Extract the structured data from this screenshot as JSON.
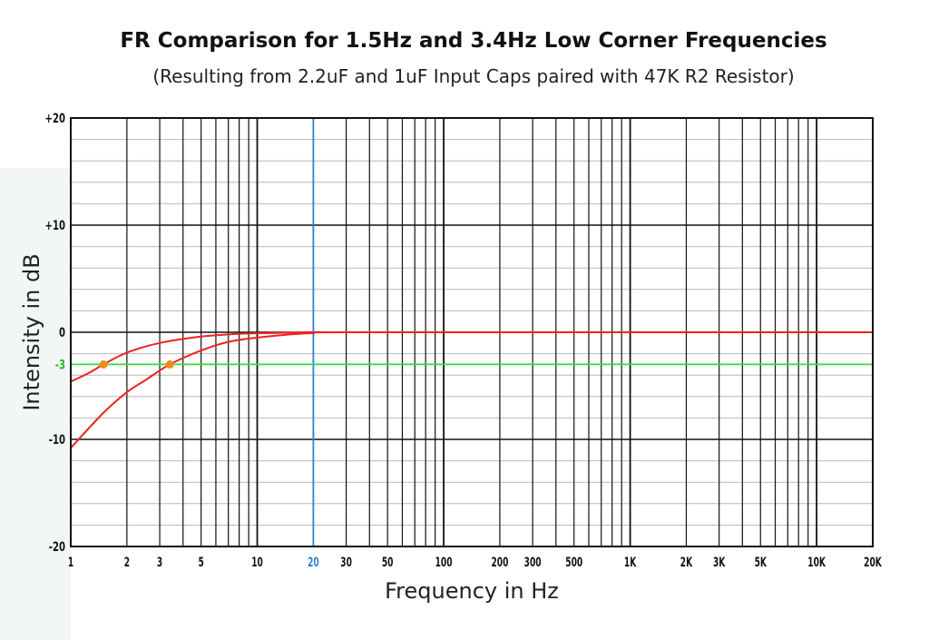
{
  "chart_data": {
    "type": "line",
    "title": "FR Comparison for 1.5Hz and 3.4Hz Low Corner Frequencies",
    "subtitle": "(Resulting from 2.2uF and 1uF Input Caps paired with 47K R2 Resistor)",
    "xlabel": "Frequency in Hz",
    "ylabel": "Intensity in dB",
    "x_scale": "log",
    "xlim": [
      1,
      20000
    ],
    "ylim": [
      -20,
      20
    ],
    "grid": true,
    "x_ticks": [
      {
        "value": 1,
        "label": "1"
      },
      {
        "value": 2,
        "label": "2"
      },
      {
        "value": 3,
        "label": "3"
      },
      {
        "value": 5,
        "label": "5"
      },
      {
        "value": 10,
        "label": "10"
      },
      {
        "value": 20,
        "label": "20"
      },
      {
        "value": 30,
        "label": "30"
      },
      {
        "value": 50,
        "label": "50"
      },
      {
        "value": 100,
        "label": "100"
      },
      {
        "value": 200,
        "label": "200"
      },
      {
        "value": 300,
        "label": "300"
      },
      {
        "value": 500,
        "label": "500"
      },
      {
        "value": 1000,
        "label": "1K"
      },
      {
        "value": 2000,
        "label": "2K"
      },
      {
        "value": 3000,
        "label": "3K"
      },
      {
        "value": 5000,
        "label": "5K"
      },
      {
        "value": 10000,
        "label": "10K"
      },
      {
        "value": 20000,
        "label": "20K"
      }
    ],
    "y_ticks": [
      {
        "value": 20,
        "label": "+20"
      },
      {
        "value": 10,
        "label": "+10"
      },
      {
        "value": 0,
        "label": "0"
      },
      {
        "value": -3,
        "label": "-3"
      },
      {
        "value": -10,
        "label": "-10"
      },
      {
        "value": -20,
        "label": "-20"
      }
    ],
    "highlight_x": {
      "value": 20,
      "color": "#2b7fd0"
    },
    "reference_line": {
      "value": -3,
      "color": "#33dd33"
    },
    "series": [
      {
        "corner_hz": 1.5,
        "color": "#ee2222",
        "x": [
          1,
          1.25,
          1.5,
          2,
          3,
          5,
          8,
          12,
          20,
          30,
          20000
        ],
        "y": [
          -4.6,
          -3.8,
          -3.0,
          -1.9,
          -1.0,
          -0.4,
          -0.15,
          -0.07,
          0,
          0,
          0
        ]
      },
      {
        "corner_hz": 3.4,
        "color": "#ee2222",
        "x": [
          1,
          1.5,
          2,
          2.5,
          3.4,
          5,
          7,
          10,
          15,
          20,
          30,
          20000
        ],
        "y": [
          -10.8,
          -7.5,
          -5.6,
          -4.5,
          -3.0,
          -1.7,
          -0.9,
          -0.5,
          -0.2,
          -0.08,
          0,
          0
        ]
      }
    ],
    "markers": [
      {
        "x": 1.5,
        "y": -3,
        "color": "#f08a1c"
      },
      {
        "x": 3.4,
        "y": -3,
        "color": "#f08a1c"
      }
    ]
  }
}
